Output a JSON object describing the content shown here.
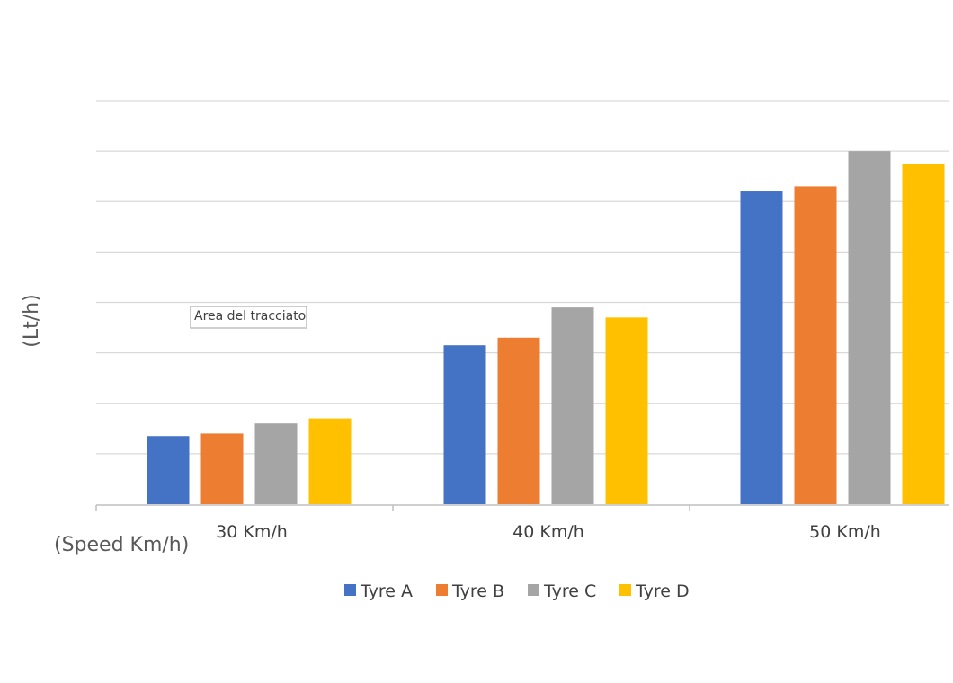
{
  "tooltip": {
    "text": "Area del tracciato"
  },
  "chart_data": {
    "type": "bar",
    "title": "",
    "xlabel": "(Speed Km/h)",
    "ylabel": "(Lt/h)",
    "categories": [
      "30 Km/h",
      "40 Km/h",
      "50 Km/h"
    ],
    "series": [
      {
        "name": "Tyre A",
        "color": "#4472C4",
        "values": [
          1.35,
          3.15,
          6.2
        ]
      },
      {
        "name": "Tyre B",
        "color": "#ED7D31",
        "values": [
          1.4,
          3.3,
          6.3
        ]
      },
      {
        "name": "Tyre C",
        "color": "#A5A5A5",
        "values": [
          1.6,
          3.9,
          7.0
        ]
      },
      {
        "name": "Tyre D",
        "color": "#FFC000",
        "values": [
          1.7,
          3.7,
          6.75
        ]
      }
    ],
    "ylim": [
      0,
      8
    ],
    "y_tick_labels_shown": false,
    "grid": true,
    "legend_position": "bottom"
  }
}
